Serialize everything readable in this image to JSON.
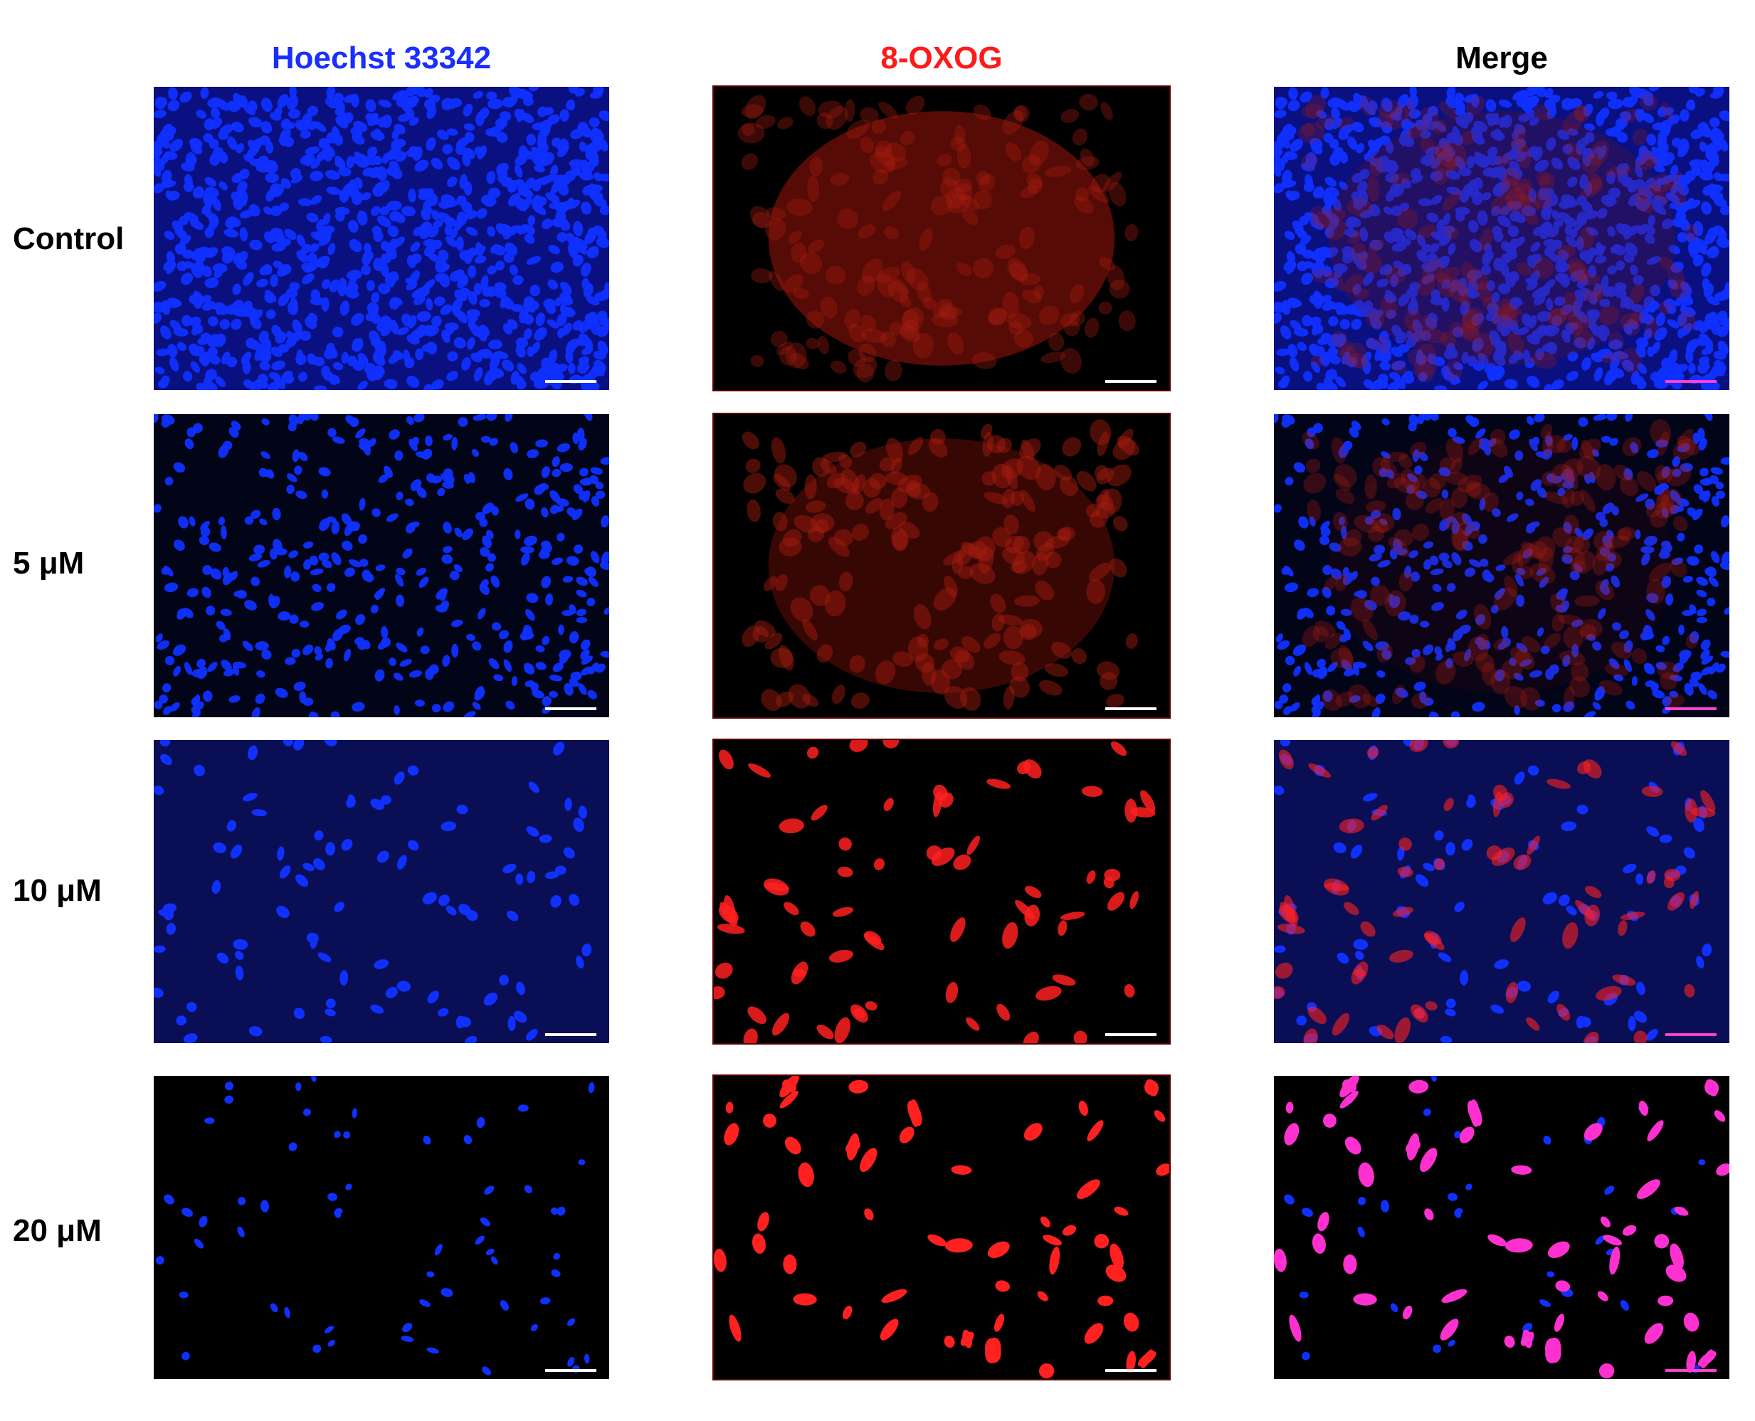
{
  "figure": {
    "columns": [
      {
        "label": "Hoechst 33342",
        "color": "#1a2eff",
        "channel": "blue"
      },
      {
        "label": "8-OXOG",
        "color": "#ff1a1a",
        "channel": "red"
      },
      {
        "label": "Merge",
        "color": "#000000",
        "channel": "merge"
      }
    ],
    "rows": [
      {
        "label": "Control",
        "cell_density": "high",
        "red_intensity": "low-diffuse"
      },
      {
        "label": "5 μM",
        "cell_density": "medium-high",
        "red_intensity": "medium-diffuse"
      },
      {
        "label": "10 μM",
        "cell_density": "medium-low",
        "red_intensity": "high-sparse"
      },
      {
        "label": "20 μM",
        "cell_density": "low",
        "red_intensity": "very-high-sparse"
      }
    ],
    "colors": {
      "nuclei_blue": "#1030ff",
      "signal_red": "#ff2020",
      "merge_magenta": "#ff30d0",
      "background": "#000000"
    }
  }
}
